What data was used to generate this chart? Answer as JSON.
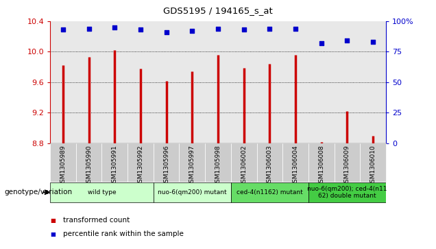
{
  "title": "GDS5195 / 194165_s_at",
  "samples": [
    "GSM1305989",
    "GSM1305990",
    "GSM1305991",
    "GSM1305992",
    "GSM1305996",
    "GSM1305997",
    "GSM1305998",
    "GSM1306002",
    "GSM1306003",
    "GSM1306004",
    "GSM1306008",
    "GSM1306009",
    "GSM1306010"
  ],
  "transformed_count": [
    9.82,
    9.93,
    10.02,
    9.78,
    9.62,
    9.74,
    9.96,
    9.79,
    9.84,
    9.96,
    8.82,
    9.22,
    8.9
  ],
  "percentile_rank": [
    93,
    94,
    95,
    93,
    91,
    92,
    94,
    93,
    94,
    94,
    82,
    84,
    83
  ],
  "ylim_left": [
    8.8,
    10.4
  ],
  "ylim_right": [
    0,
    100
  ],
  "yticks_left": [
    8.8,
    9.2,
    9.6,
    10.0,
    10.4
  ],
  "yticks_right": [
    0,
    25,
    50,
    75,
    100
  ],
  "bar_color": "#cc0000",
  "dot_color": "#0000cc",
  "groups": [
    {
      "label": "wild type",
      "indices": [
        0,
        1,
        2,
        3
      ],
      "color": "#ccffcc"
    },
    {
      "label": "nuo-6(qm200) mutant",
      "indices": [
        4,
        5,
        6
      ],
      "color": "#ccffcc"
    },
    {
      "label": "ced-4(n1162) mutant",
      "indices": [
        7,
        8,
        9
      ],
      "color": "#66dd66"
    },
    {
      "label": "nuo-6(qm200); ced-4(n11\n62) double mutant",
      "indices": [
        10,
        11,
        12
      ],
      "color": "#44cc44"
    }
  ],
  "legend_tc": "transformed count",
  "legend_pr": "percentile rank within the sample",
  "genotype_label": "genotype/variation",
  "bar_color_left": "#cc0000",
  "ylabel_right_color": "#0000cc",
  "bg_plot": "#e8e8e8",
  "bg_xticklabel": "#cccccc",
  "tick_label_fontsize": 6.5,
  "bar_width": 2.5
}
